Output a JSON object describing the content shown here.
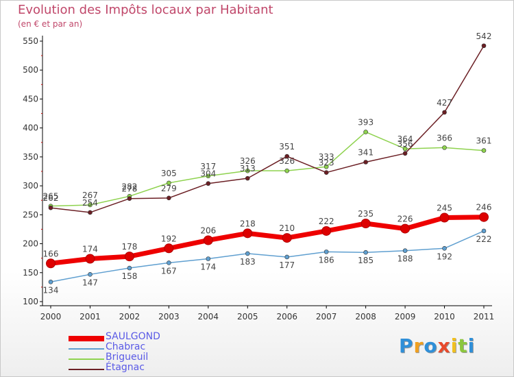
{
  "title": "Evolution des Impôts locaux par Habitant",
  "subtitle": "(en € et par an)",
  "logo": {
    "chars": [
      {
        "c": "P",
        "color": "#2f8fd8"
      },
      {
        "c": "r",
        "color": "#f0a020"
      },
      {
        "c": "o",
        "color": "#2f8fd8"
      },
      {
        "c": "x",
        "color": "#e84a2c"
      },
      {
        "c": "i",
        "color": "#f0c020"
      },
      {
        "c": "t",
        "color": "#8cc63e"
      },
      {
        "c": "i",
        "color": "#2f8fd8"
      }
    ]
  },
  "chart_data": {
    "type": "line",
    "x": [
      2000,
      2001,
      2002,
      2003,
      2004,
      2005,
      2006,
      2007,
      2008,
      2009,
      2010,
      2011
    ],
    "ylim": [
      100,
      550
    ],
    "yticks": [
      100,
      150,
      200,
      250,
      300,
      350,
      400,
      450,
      500,
      550
    ],
    "grid": false,
    "legend_position": "bottom-left",
    "series": [
      {
        "name": "SAULGOND",
        "color": "#ee0000",
        "width": 7,
        "marker": 6.5,
        "values": [
          166,
          174,
          178,
          192,
          206,
          218,
          210,
          222,
          235,
          226,
          245,
          246
        ]
      },
      {
        "name": "Chabrac",
        "color": "#5f9fd0",
        "width": 1.5,
        "marker": 3,
        "values": [
          134,
          147,
          158,
          167,
          174,
          183,
          177,
          186,
          185,
          188,
          192,
          222
        ]
      },
      {
        "name": "Brigueuil",
        "color": "#8ed24e",
        "width": 1.5,
        "marker": 3,
        "values": [
          265,
          267,
          282,
          305,
          317,
          326,
          326,
          333,
          393,
          364,
          366,
          361
        ]
      },
      {
        "name": "Étagnac",
        "color": "#6b1f24",
        "width": 1.5,
        "marker": 3,
        "values": [
          262,
          254,
          278,
          279,
          304,
          313,
          351,
          323,
          341,
          356,
          427,
          542
        ]
      }
    ]
  }
}
